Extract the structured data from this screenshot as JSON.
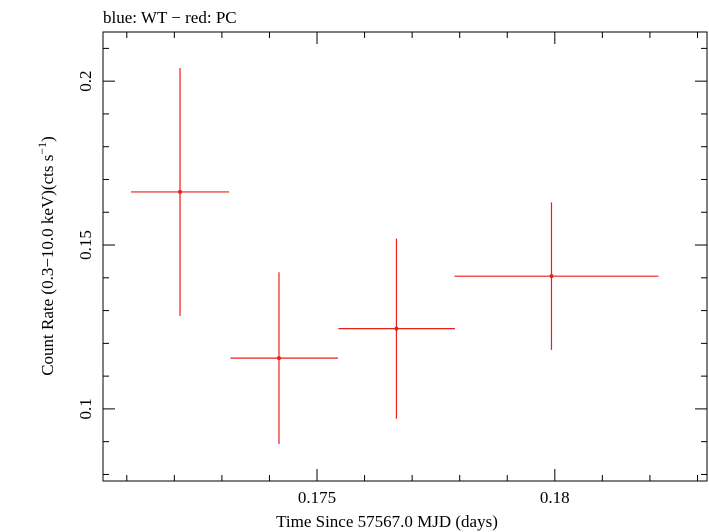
{
  "chart_data": {
    "type": "scatter",
    "title": "blue: WT − red: PC",
    "xlabel": "Time Since 57567.0 MJD (days)",
    "ylabel_main": "Count Rate (0.3−10.0 keV)(cts s",
    "ylabel_sup": "−1",
    "ylabel_close": ")",
    "xlim": [
      0.1705,
      0.1832
    ],
    "ylim": [
      0.078,
      0.215
    ],
    "x_ticks": [
      {
        "value": 0.175,
        "label": "0.175"
      },
      {
        "value": 0.18,
        "label": "0.18"
      }
    ],
    "y_ticks": [
      {
        "value": 0.1,
        "label": "0.1"
      },
      {
        "value": 0.15,
        "label": "0.15"
      },
      {
        "value": 0.2,
        "label": "0.2"
      }
    ],
    "series": [
      {
        "color": "#e8201a",
        "points": [
          {
            "x": 0.17212,
            "y": 0.1662,
            "xerr_lo": 0.00103,
            "xerr_hi": 0.00103,
            "yerr_lo": 0.0378,
            "yerr_hi": 0.0378
          },
          {
            "x": 0.1742,
            "y": 0.1155,
            "xerr_lo": 0.00102,
            "xerr_hi": 0.00124,
            "yerr_lo": 0.0262,
            "yerr_hi": 0.0262
          },
          {
            "x": 0.17667,
            "y": 0.1245,
            "xerr_lo": 0.00122,
            "xerr_hi": 0.00123,
            "yerr_lo": 0.0275,
            "yerr_hi": 0.0275
          },
          {
            "x": 0.17993,
            "y": 0.1405,
            "xerr_lo": 0.00204,
            "xerr_hi": 0.00225,
            "yerr_lo": 0.0225,
            "yerr_hi": 0.0225
          }
        ]
      }
    ]
  }
}
